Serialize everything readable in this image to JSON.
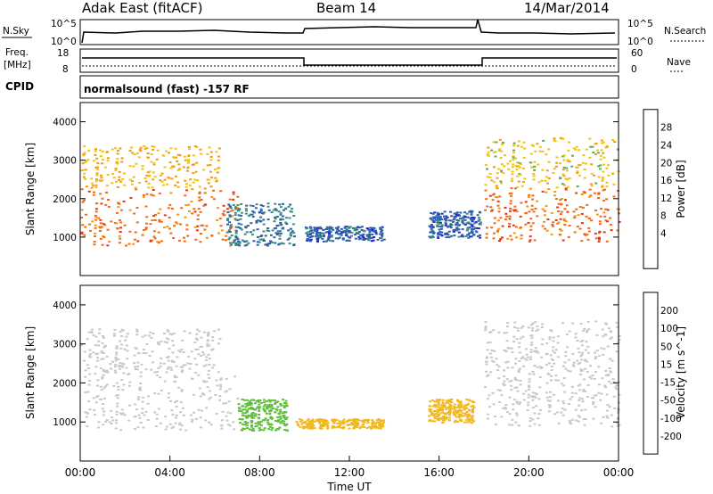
{
  "header": {
    "site": "Adak East (fitACF)",
    "beam": "Beam 14",
    "date": "14/Mar/2014"
  },
  "status_panels": {
    "nsky_label": "N.Sky",
    "nsky_ticks": [
      "10^5",
      "10^0"
    ],
    "nsearch_label": "N.Search",
    "freq_label_line1": "Freq.",
    "freq_label_line2": "[MHz]",
    "freq_ticks": [
      "18",
      "8"
    ],
    "nave_label": "Nave",
    "nave_ticks": [
      "60",
      "0"
    ],
    "cpid_label": "CPID",
    "program": "normalsound (fast) -157 RF"
  },
  "chart_data": [
    {
      "type": "heatmap",
      "name": "power",
      "ylabel": "Slant Range [km]",
      "ylim": [
        0,
        4500
      ],
      "yticks": [
        "1000",
        "2000",
        "3000",
        "4000"
      ],
      "xlim": [
        0,
        24
      ],
      "colorbar": {
        "label": "Power [dB]",
        "ticks": [
          "4",
          "8",
          "12",
          "16",
          "20",
          "24",
          "28"
        ],
        "colors": [
          "#1f1fe6",
          "#2e5fa8",
          "#3f8f7f",
          "#5faa5a",
          "#f2c40e",
          "#f29a12",
          "#f26a14",
          "#ea3414",
          "#e01010"
        ]
      },
      "regions": [
        {
          "x": [
            0.0,
            7.0
          ],
          "y": [
            800,
            2300
          ],
          "level": 26
        },
        {
          "x": [
            0.0,
            6.2
          ],
          "y": [
            2300,
            3400
          ],
          "level": 20
        },
        {
          "x": [
            6.5,
            9.5
          ],
          "y": [
            800,
            1900
          ],
          "level": 8
        },
        {
          "x": [
            10.0,
            13.5
          ],
          "y": [
            900,
            1300
          ],
          "level": 6
        },
        {
          "x": [
            15.5,
            17.8
          ],
          "y": [
            1000,
            1700
          ],
          "level": 6
        },
        {
          "x": [
            18.0,
            24.0
          ],
          "y": [
            900,
            2300
          ],
          "level": 26
        },
        {
          "x": [
            18.0,
            24.0
          ],
          "y": [
            2300,
            3600
          ],
          "level": 18
        }
      ]
    },
    {
      "type": "heatmap",
      "name": "velocity",
      "ylabel": "Slant Range [km]",
      "xlabel": "Time UT",
      "ylim": [
        0,
        4500
      ],
      "yticks": [
        "1000",
        "2000",
        "3000",
        "4000"
      ],
      "xticks": [
        "00:00",
        "04:00",
        "08:00",
        "12:00",
        "16:00",
        "20:00",
        "00:00"
      ],
      "xlim": [
        0,
        24
      ],
      "colorbar": {
        "label": "Velocity [m s^-1]",
        "ticks": [
          "200",
          "100",
          "50",
          "15",
          "-15",
          "-50",
          "-100",
          "-200"
        ],
        "colors": [
          "#2a2ab8",
          "#2a6fb0",
          "#2f8f6a",
          "#5fbf3a",
          "#c8c8c8",
          "#f2b820",
          "#f2801a",
          "#ea4414",
          "#e01010"
        ]
      },
      "regions": [
        {
          "x": [
            0.0,
            7.0
          ],
          "y": [
            800,
            2300
          ],
          "level": 0
        },
        {
          "x": [
            0.0,
            6.2
          ],
          "y": [
            2300,
            3400
          ],
          "level": 0
        },
        {
          "x": [
            7.0,
            9.2
          ],
          "y": [
            800,
            1600
          ],
          "level": 30
        },
        {
          "x": [
            9.5,
            13.5
          ],
          "y": [
            850,
            1100
          ],
          "level": -30
        },
        {
          "x": [
            15.5,
            17.5
          ],
          "y": [
            1000,
            1600
          ],
          "level": -30
        },
        {
          "x": [
            18.0,
            24.0
          ],
          "y": [
            900,
            2300
          ],
          "level": 0
        },
        {
          "x": [
            18.0,
            24.0
          ],
          "y": [
            2300,
            3600
          ],
          "level": 0
        }
      ]
    }
  ],
  "colors": {
    "axis": "#000000",
    "background": "#ffffff"
  }
}
